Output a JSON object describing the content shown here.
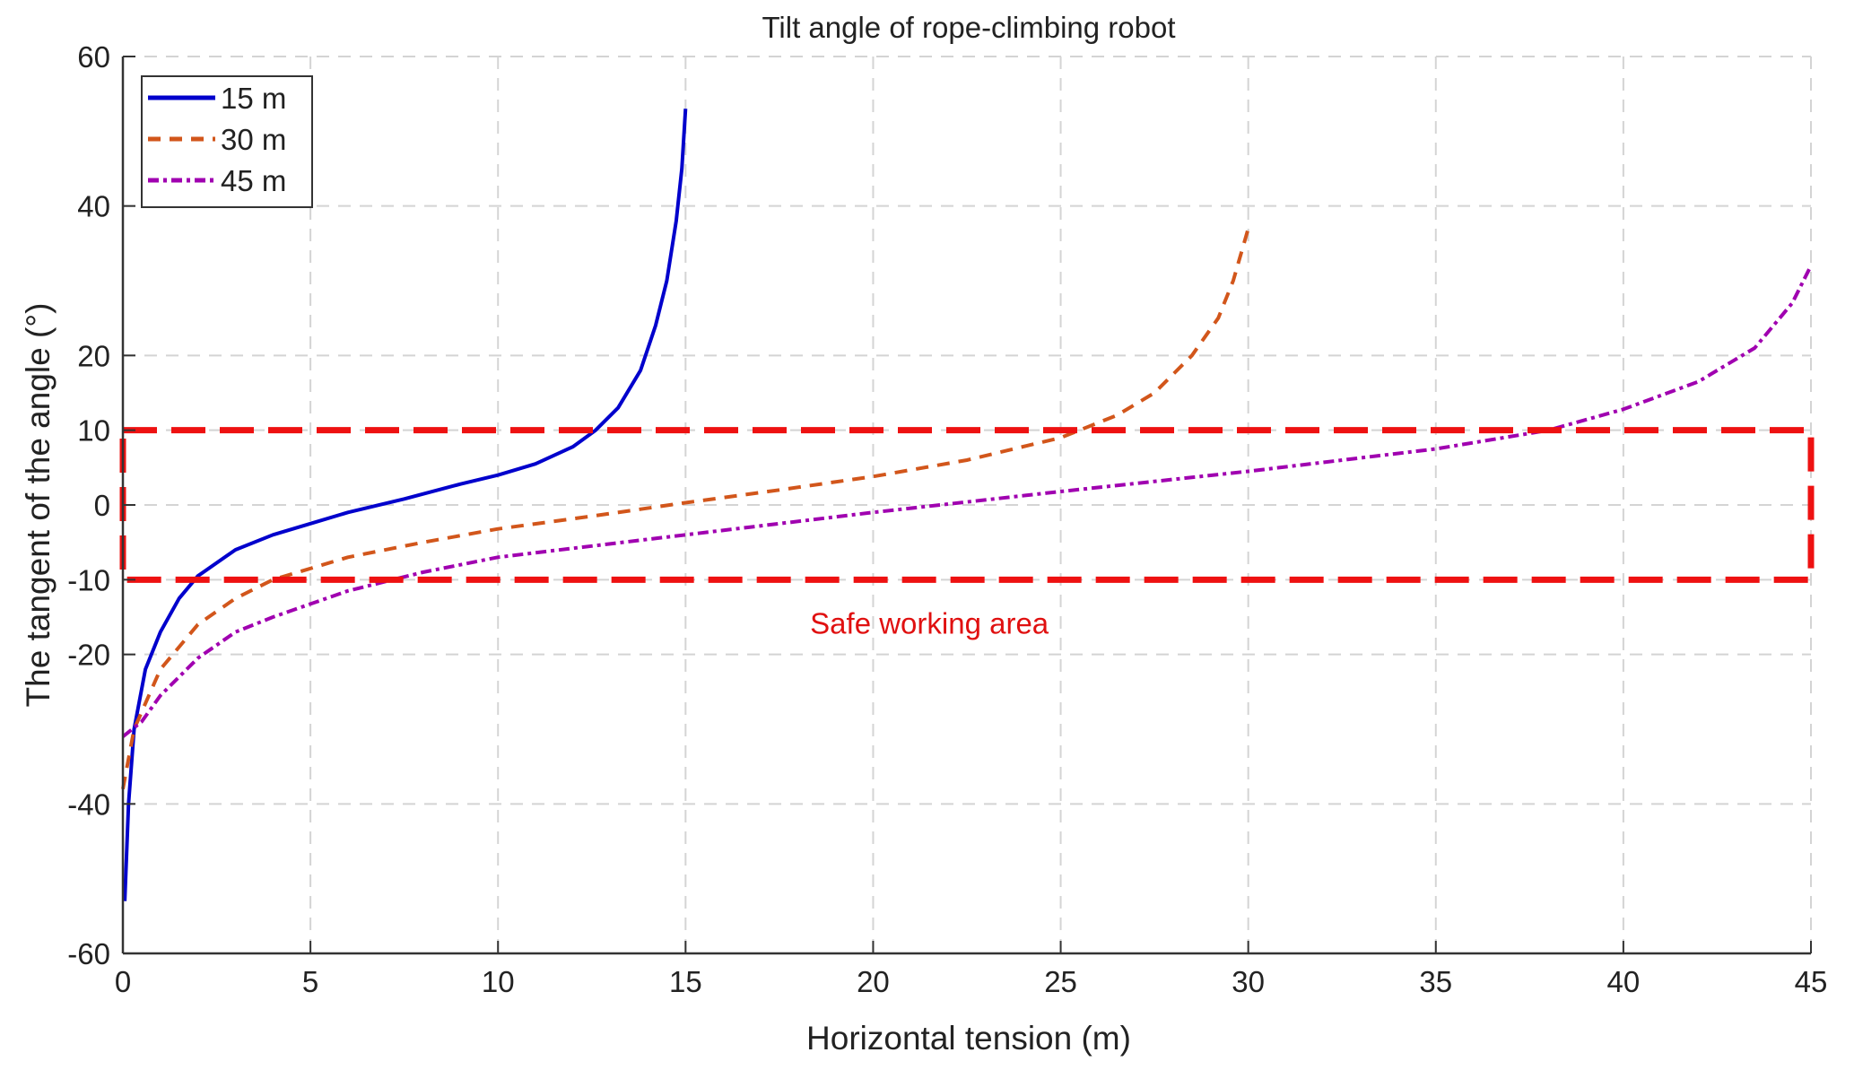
{
  "chart_data": {
    "type": "line",
    "title": "Tilt angle of rope-climbing robot",
    "xlabel": "Horizontal tension (m)",
    "ylabel": "The tangent of the angle (°)",
    "xlim": [
      0,
      45
    ],
    "ylim": [
      -60,
      60
    ],
    "xticks": [
      0,
      5,
      10,
      15,
      20,
      25,
      30,
      35,
      40,
      45
    ],
    "yticks": [
      -60,
      -40,
      -20,
      -10,
      0,
      10,
      20,
      40,
      60
    ],
    "grid": true,
    "legend_position": "top-left",
    "series": [
      {
        "name": "15 m",
        "color": "#0000cc",
        "style": "solid",
        "x": [
          0.05,
          0.15,
          0.3,
          0.6,
          1,
          1.5,
          2,
          3,
          4,
          5,
          6,
          7.5,
          9,
          10,
          11,
          12,
          12.6,
          13.2,
          13.8,
          14.2,
          14.5,
          14.75,
          14.9,
          15
        ],
        "y": [
          -53,
          -40,
          -30,
          -22,
          -17,
          -12.5,
          -9.5,
          -6,
          -4,
          -2.5,
          -1,
          0.8,
          2.8,
          4,
          5.5,
          7.8,
          10,
          13,
          18,
          24,
          30,
          38,
          45,
          53
        ]
      },
      {
        "name": "30 m",
        "color": "#d2561b",
        "style": "dashed",
        "x": [
          0,
          0.3,
          1,
          2,
          3,
          4,
          6,
          8,
          10,
          12.5,
          15,
          17.5,
          20,
          22.5,
          25,
          26.5,
          27.5,
          28.5,
          29.2,
          29.6,
          30
        ],
        "y": [
          -38,
          -30,
          -22,
          -16,
          -12.5,
          -10,
          -7,
          -5,
          -3.2,
          -1.5,
          0.3,
          2,
          3.8,
          6,
          9,
          12,
          15,
          20,
          25,
          30,
          37
        ]
      },
      {
        "name": "45 m",
        "color": "#a000b0",
        "style": "dashdot",
        "x": [
          0,
          0.5,
          1,
          2,
          3,
          4,
          6,
          8,
          10,
          15,
          20,
          25,
          30,
          35,
          38,
          40,
          42,
          43.5,
          44.5,
          45
        ],
        "y": [
          -31,
          -29,
          -25.5,
          -20.5,
          -17,
          -15,
          -11.5,
          -9,
          -7,
          -4,
          -1,
          1.8,
          4.5,
          7.5,
          10,
          12.8,
          16.5,
          21,
          27,
          32
        ]
      }
    ],
    "annotations": [
      {
        "text": "Safe working area",
        "x": 21.5,
        "y": -15.8,
        "color": "#e01010"
      }
    ],
    "region": {
      "x": [
        0,
        45
      ],
      "y": [
        -10,
        10
      ],
      "color": "#ee1111",
      "style": "dashed"
    }
  }
}
